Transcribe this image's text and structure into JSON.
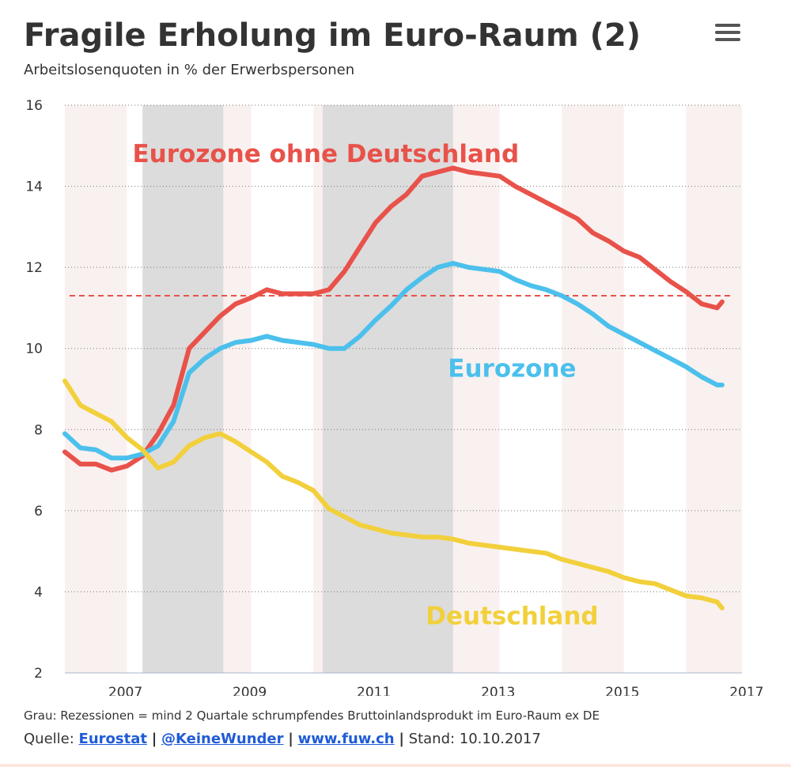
{
  "header": {
    "title": "Fragile Erholung im Euro-Raum (2)",
    "subtitle": "Arbeitslosenquoten in % der Erwerbspersonen",
    "menu_icon": "hamburger-menu-icon"
  },
  "chart_data": {
    "type": "line",
    "title": "Fragile Erholung im Euro-Raum (2)",
    "subtitle": "Arbeitslosenquoten in % der Erwerbspersonen",
    "xlabel": "",
    "ylabel": "",
    "xlim": [
      2006.5,
      2017.4
    ],
    "ylim": [
      2,
      16
    ],
    "yticks": [
      "2",
      "4",
      "6",
      "8",
      "10",
      "12",
      "14",
      "16"
    ],
    "xticks": [
      "2007",
      "2009",
      "2011",
      "2013",
      "2015",
      "2017"
    ],
    "grid": "horizontal dotted",
    "annual_stripes": [
      "#f9f1ef",
      "#ffffff"
    ],
    "recessions": [
      {
        "from": 2007.75,
        "to": 2009.05
      },
      {
        "from": 2010.65,
        "to": 2012.75
      }
    ],
    "reference_line": {
      "y": 11.3,
      "color": "#e8524a",
      "style": "dashed"
    },
    "series": [
      {
        "name": "Eurozone ohne Deutschland",
        "color": "#e8524a",
        "label_position": [
          2010.7,
          14.6
        ],
        "x": [
          2006.5,
          2006.75,
          2007.0,
          2007.25,
          2007.5,
          2007.75,
          2008.0,
          2008.25,
          2008.5,
          2008.75,
          2009.0,
          2009.25,
          2009.5,
          2009.75,
          2010.0,
          2010.25,
          2010.5,
          2010.75,
          2011.0,
          2011.25,
          2011.5,
          2011.75,
          2012.0,
          2012.25,
          2012.5,
          2012.75,
          2013.0,
          2013.25,
          2013.5,
          2013.75,
          2014.0,
          2014.25,
          2014.5,
          2014.75,
          2015.0,
          2015.25,
          2015.5,
          2015.75,
          2016.0,
          2016.25,
          2016.5,
          2016.75,
          2017.0,
          2017.08
        ],
        "values": [
          7.45,
          7.15,
          7.15,
          7.0,
          7.1,
          7.35,
          7.9,
          8.6,
          10.0,
          10.4,
          10.8,
          11.1,
          11.25,
          11.45,
          11.35,
          11.35,
          11.35,
          11.45,
          11.9,
          12.5,
          13.1,
          13.5,
          13.8,
          14.25,
          14.35,
          14.45,
          14.35,
          14.3,
          14.25,
          14.0,
          13.8,
          13.6,
          13.4,
          13.2,
          12.85,
          12.65,
          12.4,
          12.25,
          11.95,
          11.65,
          11.4,
          11.1,
          11.0,
          11.15
        ]
      },
      {
        "name": "Eurozone",
        "color": "#4cc0ec",
        "label_position": [
          2013.7,
          9.3
        ],
        "x": [
          2006.5,
          2006.75,
          2007.0,
          2007.25,
          2007.5,
          2007.75,
          2008.0,
          2008.25,
          2008.5,
          2008.75,
          2009.0,
          2009.25,
          2009.5,
          2009.75,
          2010.0,
          2010.25,
          2010.5,
          2010.75,
          2011.0,
          2011.25,
          2011.5,
          2011.75,
          2012.0,
          2012.25,
          2012.5,
          2012.75,
          2013.0,
          2013.25,
          2013.5,
          2013.75,
          2014.0,
          2014.25,
          2014.5,
          2014.75,
          2015.0,
          2015.25,
          2015.5,
          2015.75,
          2016.0,
          2016.25,
          2016.5,
          2016.75,
          2017.0,
          2017.08
        ],
        "values": [
          7.9,
          7.55,
          7.5,
          7.3,
          7.3,
          7.4,
          7.6,
          8.2,
          9.4,
          9.75,
          10.0,
          10.15,
          10.2,
          10.3,
          10.2,
          10.15,
          10.1,
          10.0,
          10.0,
          10.3,
          10.7,
          11.05,
          11.45,
          11.75,
          12.0,
          12.1,
          12.0,
          11.95,
          11.9,
          11.7,
          11.55,
          11.45,
          11.3,
          11.1,
          10.85,
          10.55,
          10.35,
          10.15,
          9.95,
          9.75,
          9.55,
          9.3,
          9.1,
          9.1
        ]
      },
      {
        "name": "Deutschland",
        "color": "#f2d03c",
        "label_position": [
          2013.7,
          3.2
        ],
        "x": [
          2006.5,
          2006.75,
          2007.0,
          2007.25,
          2007.5,
          2007.75,
          2008.0,
          2008.25,
          2008.5,
          2008.75,
          2009.0,
          2009.25,
          2009.5,
          2009.75,
          2010.0,
          2010.25,
          2010.5,
          2010.75,
          2011.0,
          2011.25,
          2011.5,
          2011.75,
          2012.0,
          2012.25,
          2012.5,
          2012.75,
          2013.0,
          2013.25,
          2013.5,
          2013.75,
          2014.0,
          2014.25,
          2014.5,
          2014.75,
          2015.0,
          2015.25,
          2015.5,
          2015.75,
          2016.0,
          2016.25,
          2016.5,
          2016.75,
          2017.0,
          2017.08
        ],
        "values": [
          9.2,
          8.6,
          8.4,
          8.2,
          7.8,
          7.5,
          7.05,
          7.2,
          7.6,
          7.8,
          7.9,
          7.7,
          7.45,
          7.2,
          6.85,
          6.7,
          6.5,
          6.05,
          5.85,
          5.65,
          5.55,
          5.45,
          5.4,
          5.35,
          5.35,
          5.3,
          5.2,
          5.15,
          5.1,
          5.05,
          5.0,
          4.95,
          4.8,
          4.7,
          4.6,
          4.5,
          4.35,
          4.25,
          4.2,
          4.05,
          3.9,
          3.85,
          3.75,
          3.6
        ]
      }
    ]
  },
  "footer": {
    "note": "Grau: Rezessionen = mind 2 Quartale schrumpfendes Bruttoinlandsprodukt im Euro-Raum ex DE",
    "source_label": "Quelle:",
    "links": [
      "Eurostat",
      "@KeineWunder",
      "www.fuw.ch"
    ],
    "separator": "|",
    "stand": "Stand: 10.10.2017"
  }
}
